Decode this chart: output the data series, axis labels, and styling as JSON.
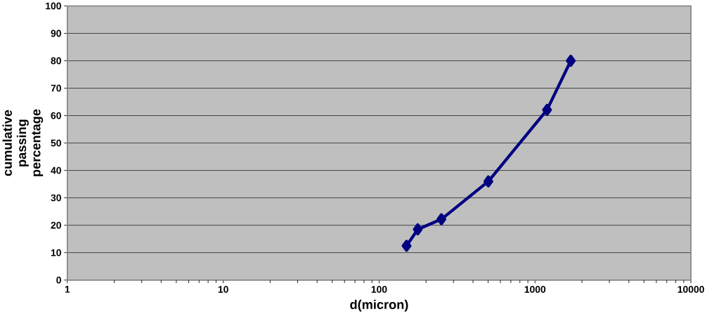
{
  "chart_data": {
    "type": "line",
    "xlabel": "d(micron)",
    "ylabel": "cumulative passing percentage",
    "x": [
      150,
      177,
      251,
      502,
      1194,
      1696
    ],
    "series": [
      {
        "color": "#000080",
        "values": [
          12.5,
          18.5,
          22.2,
          36,
          62.1,
          80
        ]
      }
    ],
    "log": "x",
    "xlim": [
      1,
      10000
    ],
    "xticks": [
      1,
      10,
      100,
      1000,
      10000
    ],
    "ylim": [
      0,
      100
    ],
    "yticks": [
      0,
      10,
      20,
      30,
      40,
      50,
      60,
      70,
      80,
      90,
      100
    ],
    "grid": "y",
    "marker": "diamond",
    "line_style": "solid"
  }
}
